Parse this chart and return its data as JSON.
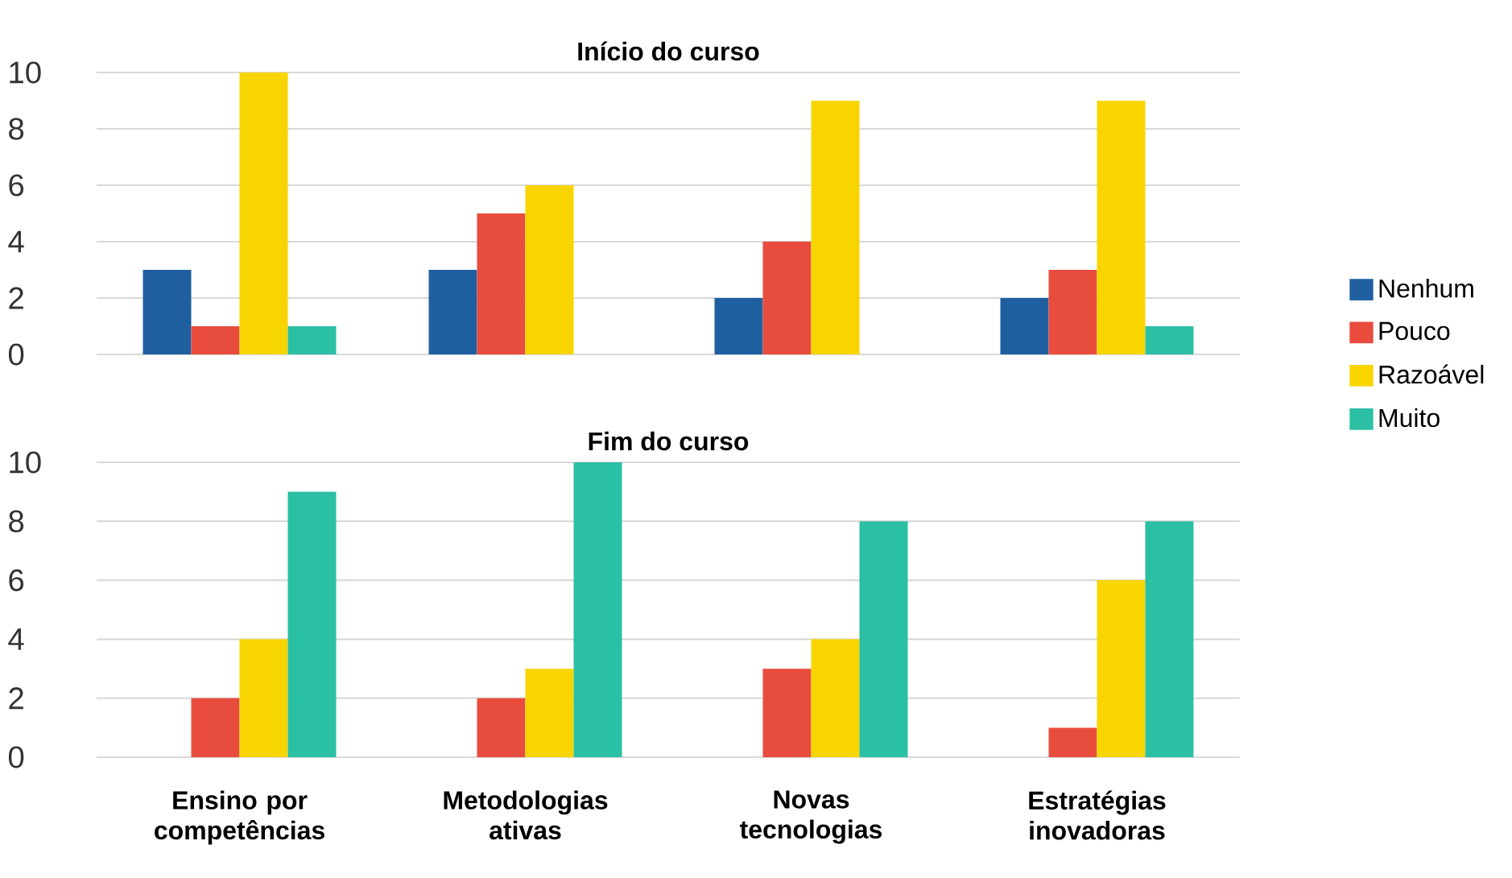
{
  "chart_data": [
    {
      "type": "bar",
      "title": "Início do curso",
      "categories": [
        null,
        null,
        null,
        null
      ],
      "series": [
        {
          "name": "Nenhum",
          "color": "#1f5fa0",
          "values": [
            3,
            3,
            2,
            2
          ]
        },
        {
          "name": "Pouco",
          "color": "#e84c3d",
          "values": [
            1,
            5,
            4,
            3
          ]
        },
        {
          "name": "Razoável",
          "color": "#f9d500",
          "values": [
            10,
            6,
            9,
            9
          ]
        },
        {
          "name": "Muito",
          "color": "#2bbfa4",
          "values": [
            1,
            0,
            0,
            1
          ]
        }
      ],
      "ylim": [
        0,
        10
      ],
      "yticks": [
        0,
        2,
        4,
        6,
        8,
        10
      ],
      "grid": "y",
      "legend": "right",
      "tick_labels": "y"
    },
    {
      "type": "bar",
      "title": "Fim do curso",
      "categories": [
        "Ensino por competências",
        "Metodologias ativas",
        "Novas tecnologias",
        "Estratégias inovadoras"
      ],
      "series": [
        {
          "color": "#1f5fa0",
          "values": [
            0,
            0,
            0,
            0
          ]
        },
        {
          "color": "#e84c3d",
          "values": [
            2,
            2,
            3,
            1
          ]
        },
        {
          "color": "#f9d500",
          "values": [
            4,
            3,
            4,
            6
          ]
        },
        {
          "color": "#2bbfa4",
          "values": [
            9,
            10,
            8,
            8
          ]
        }
      ],
      "ylim": [
        0,
        10
      ],
      "yticks": [
        0,
        2,
        4,
        6,
        8,
        10
      ],
      "grid": "y"
    }
  ]
}
